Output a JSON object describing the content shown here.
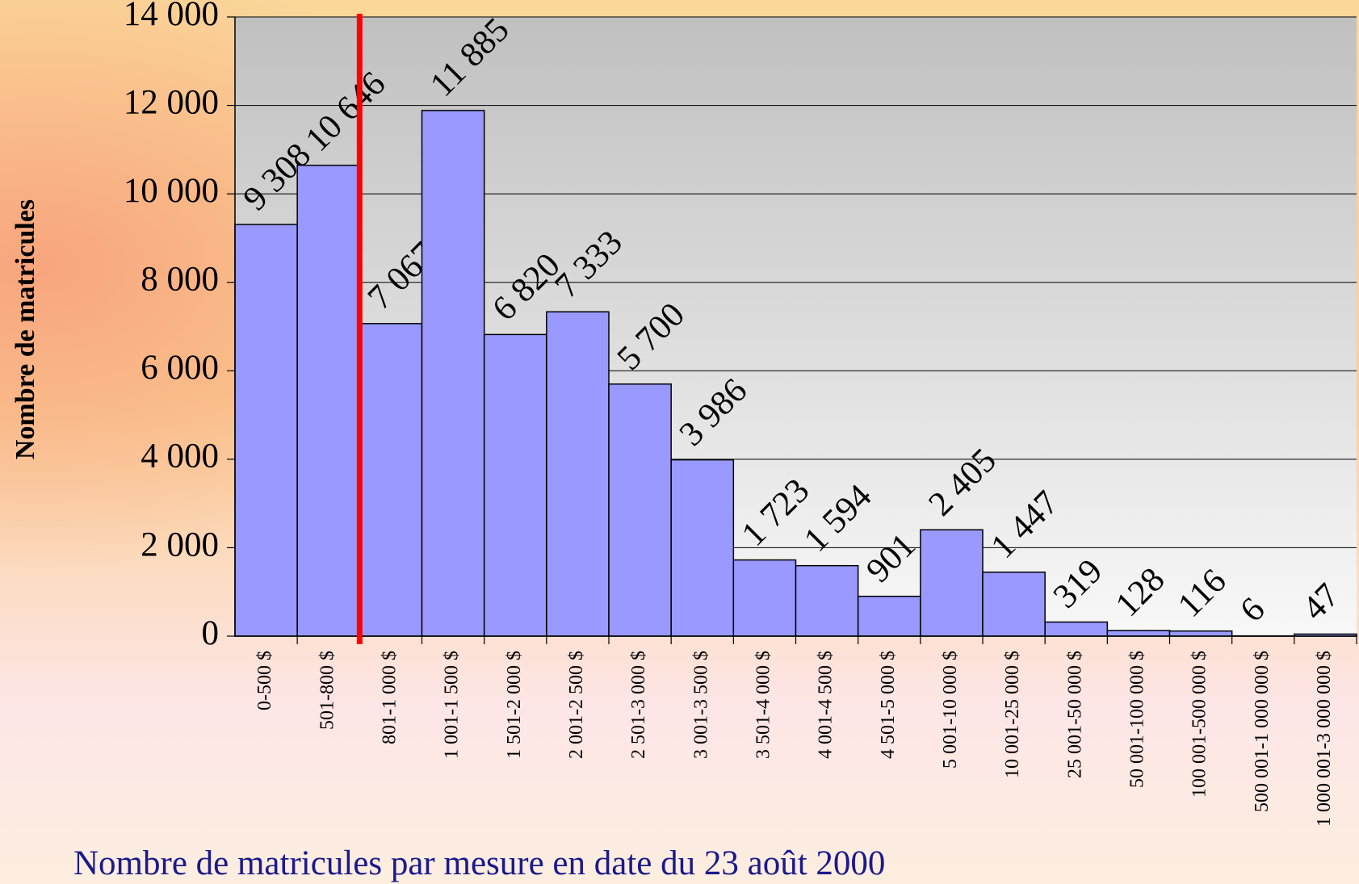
{
  "chart_data": {
    "type": "bar",
    "title": "Nombre de matricules par mesure en date du 23 août 2000",
    "y_label": "Nombre de matricules",
    "categories": [
      "0-500 $",
      "501-800 $",
      "801-1 000 $",
      "1 001-1 500 $",
      "1 501-2 000 $",
      "2 001-2 500 $",
      "2 501-3 000 $",
      "3 001-3 500 $",
      "3 501-4 000 $",
      "4 001-4 500 $",
      "4 501-5 000 $",
      "5 001-10 000 $",
      "10 001-25 000 $",
      "25 001-50 000 $",
      "50 001-100 000 $",
      "100 001-500 000 $",
      "500 001-1 000 000 $",
      "1 000 001-3 000 000 $"
    ],
    "values": [
      9308,
      10646,
      7067,
      11885,
      6820,
      7333,
      5700,
      3986,
      1723,
      1594,
      901,
      2405,
      1447,
      319,
      128,
      116,
      6,
      47
    ],
    "value_labels": [
      "9 308",
      "10 646",
      "7 067",
      "11 885",
      "6 820",
      "7 333",
      "5 700",
      "3 986",
      "1 723",
      "1 594",
      "901",
      "2 405",
      "1 447",
      "319",
      "128",
      "116",
      "6",
      "47"
    ],
    "color": "#9999ff",
    "ylim": [
      0,
      14000
    ],
    "yticks": [
      0,
      {
        "value": 2000,
        "label": "2 000"
      },
      {
        "value": 4000,
        "label": "4 000"
      },
      {
        "value": 6000,
        "label": "6 000"
      },
      {
        "value": 8000,
        "label": "8 000"
      },
      {
        "value": 10000,
        "label": "10 000"
      },
      {
        "value": 12000,
        "label": "12 000"
      },
      {
        "value": 14000,
        "label": "14 000"
      }
    ],
    "grid": true
  }
}
